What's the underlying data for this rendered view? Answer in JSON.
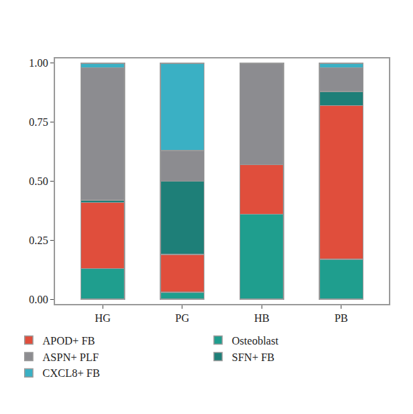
{
  "chart_data": {
    "type": "bar",
    "stacked": true,
    "categories": [
      "HG",
      "PG",
      "HB",
      "PB"
    ],
    "series": [
      {
        "name": "APOD+ FB",
        "color": "#e04e3c",
        "values": [
          0.28,
          0.16,
          0.21,
          0.65
        ]
      },
      {
        "name": "Osteoblast",
        "color": "#1f9e8e",
        "values": [
          0.13,
          0.03,
          0.36,
          0.17
        ]
      },
      {
        "name": "ASPN+ PLF",
        "color": "#8c8c90",
        "values": [
          0.56,
          0.13,
          0.43,
          0.1
        ]
      },
      {
        "name": "SFN+ FB",
        "color": "#1e7f78",
        "values": [
          0.01,
          0.31,
          0,
          0.06
        ]
      },
      {
        "name": "CXCL8+ FB",
        "color": "#3ab0c4",
        "values": [
          0.02,
          0.37,
          0,
          0.02
        ]
      }
    ],
    "ylim": [
      -0.02,
      1.02
    ],
    "yticks": [
      {
        "value": 0,
        "label": "0.00"
      },
      {
        "value": 0.25,
        "label": "0.25"
      },
      {
        "value": 0.5,
        "label": "0.50"
      },
      {
        "value": 0.75,
        "label": "0.75"
      },
      {
        "value": 1,
        "label": "1.00"
      }
    ],
    "grid": false,
    "legend": "bottom"
  }
}
